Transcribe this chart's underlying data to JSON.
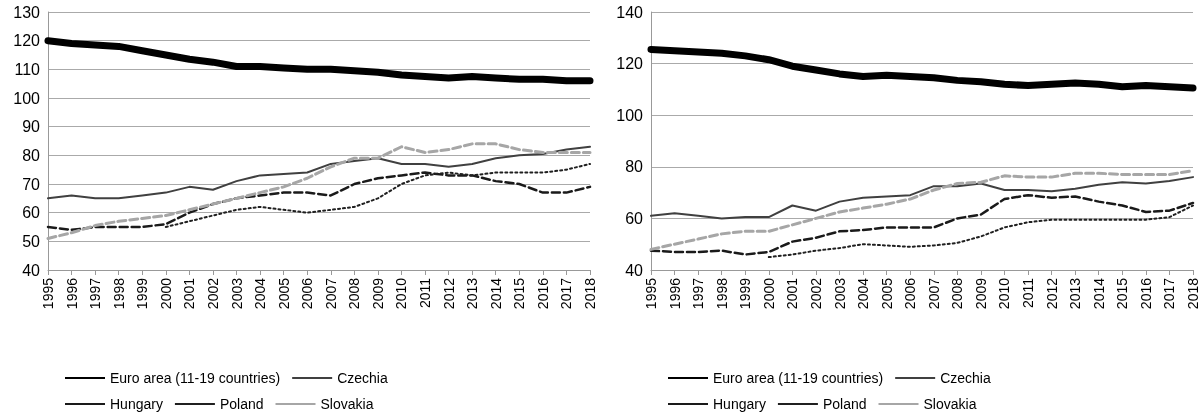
{
  "chart_data": [
    {
      "type": "line",
      "categories": [
        "1995",
        "1996",
        "1997",
        "1998",
        "1999",
        "2000",
        "2001",
        "2002",
        "2003",
        "2004",
        "2005",
        "2006",
        "2007",
        "2008",
        "2009",
        "2010",
        "2011",
        "2012",
        "2013",
        "2014",
        "2015",
        "2016",
        "2017",
        "2018"
      ],
      "ylim": [
        40,
        130
      ],
      "yticks": [
        40,
        50,
        60,
        70,
        80,
        90,
        100,
        110,
        120,
        130
      ],
      "grid": "y",
      "legend": "bottom",
      "marker": "none",
      "series": [
        {
          "name": "Euro area (11-19 countries)",
          "color": "#000000",
          "line_style": "solid",
          "values": [
            120,
            119,
            118.5,
            118,
            116.5,
            115,
            113.5,
            112.5,
            111,
            111,
            110.5,
            110,
            110,
            109.5,
            109,
            108,
            107.5,
            107,
            107.5,
            107,
            106.5,
            106.5,
            106,
            106
          ]
        },
        {
          "name": "Czechia",
          "color": "#404040",
          "line_style": "solid",
          "values": [
            65,
            66,
            65,
            65,
            66,
            67,
            69,
            68,
            71,
            73,
            73.5,
            74,
            77,
            78,
            79,
            77,
            77,
            76,
            77,
            79,
            80,
            80.5,
            82,
            83
          ]
        },
        {
          "name": "Hungary",
          "color": "#1a1a1a",
          "line_style": "dashed",
          "values": [
            55,
            54,
            55,
            55,
            55,
            56,
            60,
            63,
            65,
            66,
            67,
            67,
            66,
            70,
            72,
            73,
            74,
            73,
            73,
            71,
            70,
            67,
            67,
            69
          ]
        },
        {
          "name": "Poland",
          "color": "#202020",
          "line_style": "dotted",
          "values": [
            null,
            null,
            null,
            null,
            null,
            55,
            57,
            59,
            61,
            62,
            61,
            60,
            61,
            62,
            65,
            70,
            73,
            74,
            73,
            74,
            74,
            74,
            75,
            77
          ]
        },
        {
          "name": "Slovakia",
          "color": "#a6a6a6",
          "line_style": "dashed",
          "values": [
            51,
            53,
            55.5,
            57,
            58,
            59,
            61,
            63,
            65,
            67,
            69,
            72,
            76,
            79,
            79,
            83,
            81,
            82,
            84,
            84,
            82,
            81,
            81,
            81
          ]
        }
      ]
    },
    {
      "type": "line",
      "categories": [
        "1995",
        "1996",
        "1997",
        "1998",
        "1999",
        "2000",
        "2001",
        "2002",
        "2003",
        "2004",
        "2005",
        "2006",
        "2007",
        "2008",
        "2009",
        "2010",
        "2011",
        "2012",
        "2013",
        "2014",
        "2015",
        "2016",
        "2017",
        "2018"
      ],
      "ylim": [
        40,
        140
      ],
      "yticks": [
        40,
        60,
        80,
        100,
        120,
        140
      ],
      "grid": "y",
      "legend": "bottom",
      "marker": "none",
      "series": [
        {
          "name": "Euro area (11-19 countries)",
          "color": "#000000",
          "line_style": "solid",
          "values": [
            125.5,
            125,
            124.5,
            124,
            123,
            121.5,
            119,
            117.5,
            116,
            115,
            115.5,
            115,
            114.5,
            113.5,
            113,
            112,
            111.5,
            112,
            112.5,
            112,
            111,
            111.5,
            111,
            110.5
          ]
        },
        {
          "name": "Czechia",
          "color": "#404040",
          "line_style": "solid",
          "values": [
            61,
            62,
            61,
            60,
            60.5,
            60.5,
            65,
            63,
            66.5,
            68,
            68.5,
            69,
            72.5,
            72.5,
            73.5,
            71,
            71,
            70.5,
            71.5,
            73,
            74,
            73.5,
            74.5,
            76
          ]
        },
        {
          "name": "Hungary",
          "color": "#1a1a1a",
          "line_style": "dashed",
          "values": [
            47.5,
            47,
            47,
            47.5,
            46,
            47,
            51,
            52.5,
            55,
            55.5,
            56.5,
            56.5,
            56.5,
            60,
            61.5,
            67.5,
            69,
            68,
            68.5,
            66.5,
            65,
            62.5,
            63,
            66
          ]
        },
        {
          "name": "Poland",
          "color": "#202020",
          "line_style": "dotted",
          "values": [
            null,
            null,
            null,
            null,
            null,
            45,
            46,
            47.5,
            48.5,
            50,
            49.5,
            49,
            49.5,
            50.5,
            53,
            56.5,
            58.5,
            59.5,
            59.5,
            59.5,
            59.5,
            59.5,
            60.5,
            65
          ]
        },
        {
          "name": "Slovakia",
          "color": "#a6a6a6",
          "line_style": "dashed",
          "values": [
            48,
            50,
            52,
            54,
            55,
            55,
            57.5,
            60,
            62.5,
            64,
            65.5,
            67.5,
            71,
            73.5,
            74,
            76.5,
            76,
            76,
            77.5,
            77.5,
            77,
            77,
            77,
            78.5
          ]
        }
      ]
    }
  ]
}
